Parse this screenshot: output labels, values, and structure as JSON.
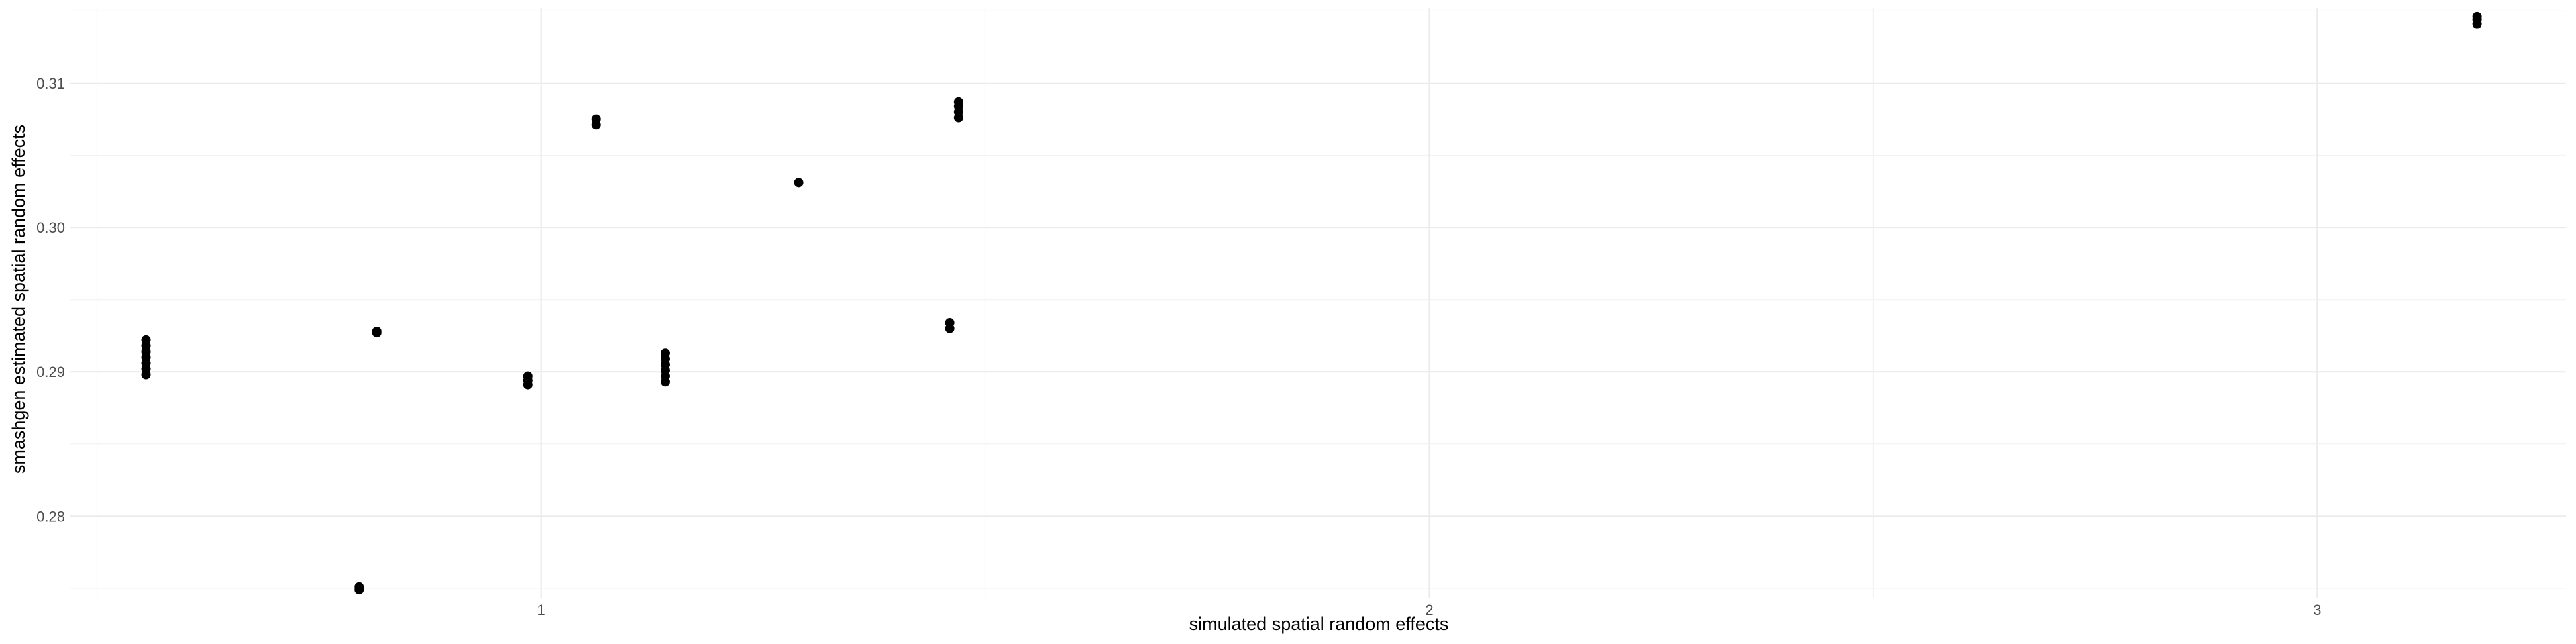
{
  "chart_data": {
    "type": "scatter",
    "title": "",
    "xlabel": "simulated spatial random effects",
    "ylabel": "smashgen estimated spatial random effects",
    "xlim": [
      0.47,
      3.28
    ],
    "ylim": [
      0.2743,
      0.3152
    ],
    "x_ticks": [
      1,
      2,
      3
    ],
    "y_ticks": [
      0.28,
      0.29,
      0.3,
      0.31
    ],
    "x_tick_labels": [
      "1",
      "2",
      "3"
    ],
    "y_tick_labels": [
      "0.28",
      "0.29",
      "0.30",
      "0.31"
    ],
    "grid": true,
    "legend": "none",
    "point_color": "#000000",
    "points": [
      {
        "x": 0.555,
        "y": 0.2898
      },
      {
        "x": 0.555,
        "y": 0.2902
      },
      {
        "x": 0.555,
        "y": 0.2906
      },
      {
        "x": 0.555,
        "y": 0.291
      },
      {
        "x": 0.555,
        "y": 0.2914
      },
      {
        "x": 0.555,
        "y": 0.2918
      },
      {
        "x": 0.555,
        "y": 0.2922
      },
      {
        "x": 0.795,
        "y": 0.2749
      },
      {
        "x": 0.795,
        "y": 0.2751
      },
      {
        "x": 0.815,
        "y": 0.2927
      },
      {
        "x": 0.815,
        "y": 0.2928
      },
      {
        "x": 0.985,
        "y": 0.2891
      },
      {
        "x": 0.985,
        "y": 0.2894
      },
      {
        "x": 0.985,
        "y": 0.2897
      },
      {
        "x": 1.062,
        "y": 0.3071
      },
      {
        "x": 1.062,
        "y": 0.3075
      },
      {
        "x": 1.14,
        "y": 0.2893
      },
      {
        "x": 1.14,
        "y": 0.2897
      },
      {
        "x": 1.14,
        "y": 0.2901
      },
      {
        "x": 1.14,
        "y": 0.2905
      },
      {
        "x": 1.14,
        "y": 0.2909
      },
      {
        "x": 1.14,
        "y": 0.2913
      },
      {
        "x": 1.29,
        "y": 0.3031
      },
      {
        "x": 1.46,
        "y": 0.293
      },
      {
        "x": 1.46,
        "y": 0.2934
      },
      {
        "x": 1.47,
        "y": 0.3076
      },
      {
        "x": 1.47,
        "y": 0.308
      },
      {
        "x": 1.47,
        "y": 0.3084
      },
      {
        "x": 1.47,
        "y": 0.3087
      },
      {
        "x": 3.18,
        "y": 0.3141
      },
      {
        "x": 3.18,
        "y": 0.3144
      },
      {
        "x": 3.18,
        "y": 0.3146
      }
    ]
  }
}
